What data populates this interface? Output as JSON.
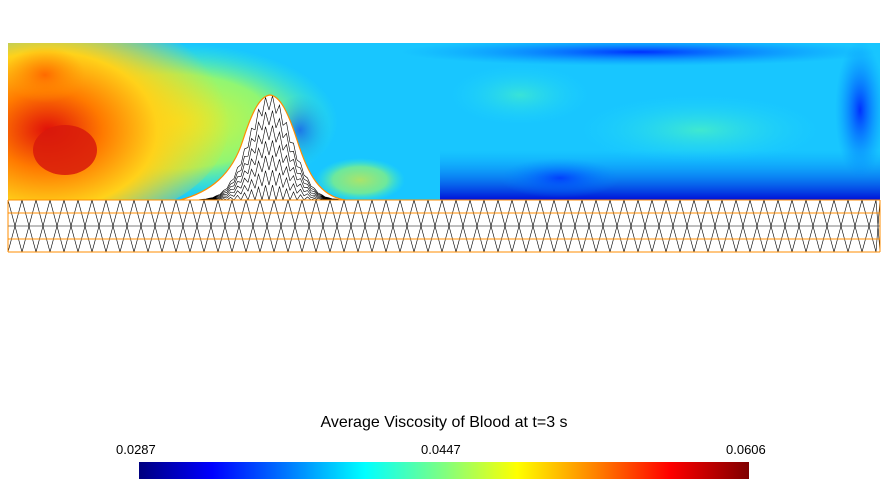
{
  "title": "Average Viscosity of Blood at t=3 s",
  "colorbar": {
    "min_label": "0.0287",
    "mid_label": "0.0447",
    "max_label": "0.0606",
    "colormap": "jet",
    "colors": [
      "#00007f",
      "#0000ff",
      "#0080ff",
      "#00ffff",
      "#80ff80",
      "#ffff00",
      "#ff8000",
      "#ff0000",
      "#7f0000"
    ]
  },
  "mesh": {
    "line_color": "#000000",
    "boundary_color": "#ff8c00"
  }
}
